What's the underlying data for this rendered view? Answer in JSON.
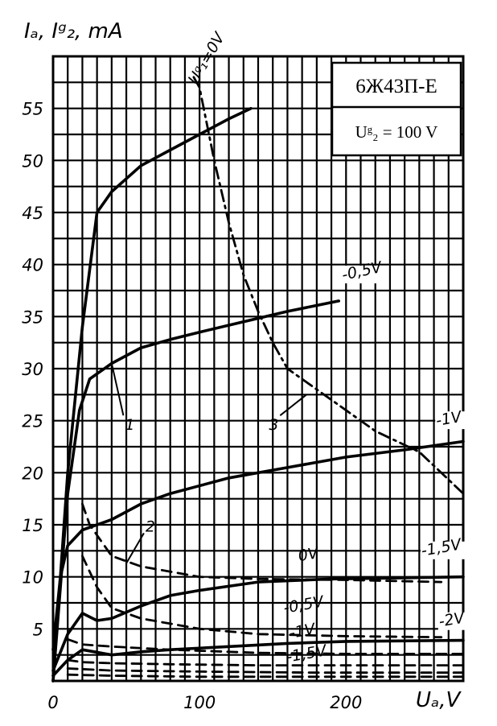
{
  "chart_data": {
    "type": "line",
    "xlabel": "Uₐ,V",
    "ylabel": "Iₐ, Iᵍ₂, mA",
    "xlim": [
      0,
      280
    ],
    "ylim": [
      0,
      60
    ],
    "x_ticks": [
      "0",
      "100",
      "200"
    ],
    "y_ticks": [
      "5",
      "10",
      "15",
      "20",
      "25",
      "30",
      "35",
      "40",
      "45",
      "50",
      "55"
    ],
    "grid": true,
    "info_box": {
      "tube": "6Ж43П-Е",
      "condition": "Uᵍ₂ = 100 V"
    },
    "series": [
      {
        "kind": "Ia",
        "label": "Uᵍ₁=0V",
        "dash": false,
        "points": [
          [
            0,
            0
          ],
          [
            10,
            20
          ],
          [
            20,
            34
          ],
          [
            30,
            45
          ],
          [
            40,
            47
          ],
          [
            60,
            49.5
          ],
          [
            80,
            51
          ],
          [
            100,
            52.5
          ],
          [
            120,
            54
          ],
          [
            135,
            55
          ]
        ]
      },
      {
        "kind": "Ia",
        "label": "-0,5V",
        "dash": false,
        "points": [
          [
            0,
            0
          ],
          [
            10,
            18
          ],
          [
            18,
            26
          ],
          [
            25,
            29
          ],
          [
            40,
            30.5
          ],
          [
            60,
            32
          ],
          [
            80,
            32.8
          ],
          [
            100,
            33.5
          ],
          [
            130,
            34.5
          ],
          [
            160,
            35.5
          ],
          [
            195,
            36.5
          ]
        ]
      },
      {
        "kind": "Ia",
        "label": "-1V",
        "dash": false,
        "points": [
          [
            0,
            3
          ],
          [
            5,
            10
          ],
          [
            10,
            13
          ],
          [
            20,
            14.5
          ],
          [
            40,
            15.5
          ],
          [
            60,
            17
          ],
          [
            80,
            18
          ],
          [
            120,
            19.5
          ],
          [
            160,
            20.5
          ],
          [
            200,
            21.5
          ],
          [
            240,
            22.2
          ],
          [
            280,
            23
          ]
        ]
      },
      {
        "kind": "Ia",
        "label": "-1,5V",
        "dash": false,
        "points": [
          [
            0,
            1
          ],
          [
            10,
            4.5
          ],
          [
            20,
            6.5
          ],
          [
            30,
            5.8
          ],
          [
            40,
            6
          ],
          [
            60,
            7.2
          ],
          [
            80,
            8.2
          ],
          [
            100,
            8.7
          ],
          [
            140,
            9.5
          ],
          [
            190,
            9.8
          ],
          [
            280,
            10
          ]
        ]
      },
      {
        "kind": "Ia",
        "label": "-2V",
        "dash": false,
        "points": [
          [
            0,
            0.5
          ],
          [
            10,
            2
          ],
          [
            20,
            3
          ],
          [
            40,
            2.5
          ],
          [
            60,
            2.8
          ],
          [
            80,
            3
          ],
          [
            120,
            3.3
          ],
          [
            160,
            3.6
          ],
          [
            200,
            3.8
          ],
          [
            280,
            3.9
          ]
        ]
      },
      {
        "kind": "Ig2",
        "label": "0V",
        "dash": true,
        "points": [
          [
            20,
            17
          ],
          [
            25,
            15
          ],
          [
            30,
            14
          ],
          [
            40,
            12
          ],
          [
            60,
            11
          ],
          [
            100,
            10
          ],
          [
            140,
            9.8
          ],
          [
            200,
            9.7
          ],
          [
            265,
            9.5
          ]
        ]
      },
      {
        "kind": "Ig2",
        "label": "-0,5V",
        "dash": true,
        "points": [
          [
            20,
            12
          ],
          [
            30,
            9
          ],
          [
            40,
            7
          ],
          [
            60,
            6
          ],
          [
            100,
            5
          ],
          [
            140,
            4.5
          ],
          [
            200,
            4.3
          ],
          [
            265,
            4.2
          ]
        ]
      },
      {
        "kind": "Ig2",
        "label": "-1V",
        "dash": true,
        "points": [
          [
            10,
            4
          ],
          [
            20,
            3.5
          ],
          [
            40,
            3.3
          ],
          [
            80,
            3
          ],
          [
            140,
            2.7
          ],
          [
            200,
            2.6
          ],
          [
            280,
            2.6
          ]
        ]
      },
      {
        "kind": "Ig2",
        "label": "-1,5V",
        "dash": true,
        "points": [
          [
            10,
            2
          ],
          [
            20,
            1.8
          ],
          [
            40,
            1.7
          ],
          [
            80,
            1.6
          ],
          [
            140,
            1.5
          ],
          [
            200,
            1.5
          ],
          [
            280,
            1.5
          ]
        ]
      },
      {
        "kind": "Ig2",
        "label": "",
        "dash": true,
        "points": [
          [
            10,
            1.2
          ],
          [
            40,
            1
          ],
          [
            100,
            0.9
          ],
          [
            180,
            0.8
          ],
          [
            280,
            0.8
          ]
        ]
      },
      {
        "kind": "Ig2",
        "label": "",
        "dash": true,
        "points": [
          [
            10,
            0.6
          ],
          [
            40,
            0.5
          ],
          [
            100,
            0.4
          ],
          [
            180,
            0.4
          ],
          [
            280,
            0.4
          ]
        ]
      },
      {
        "kind": "Pa",
        "label": "",
        "dash": "dashdot",
        "points": [
          [
            96,
            58
          ],
          [
            100,
            57
          ],
          [
            110,
            50
          ],
          [
            120,
            44
          ],
          [
            130,
            39
          ],
          [
            140,
            35.5
          ],
          [
            150,
            32.5
          ],
          [
            160,
            30
          ],
          [
            180,
            28
          ],
          [
            200,
            26
          ],
          [
            220,
            24
          ],
          [
            250,
            22
          ],
          [
            280,
            18
          ]
        ]
      }
    ],
    "markers": [
      "1",
      "2",
      "3"
    ]
  }
}
